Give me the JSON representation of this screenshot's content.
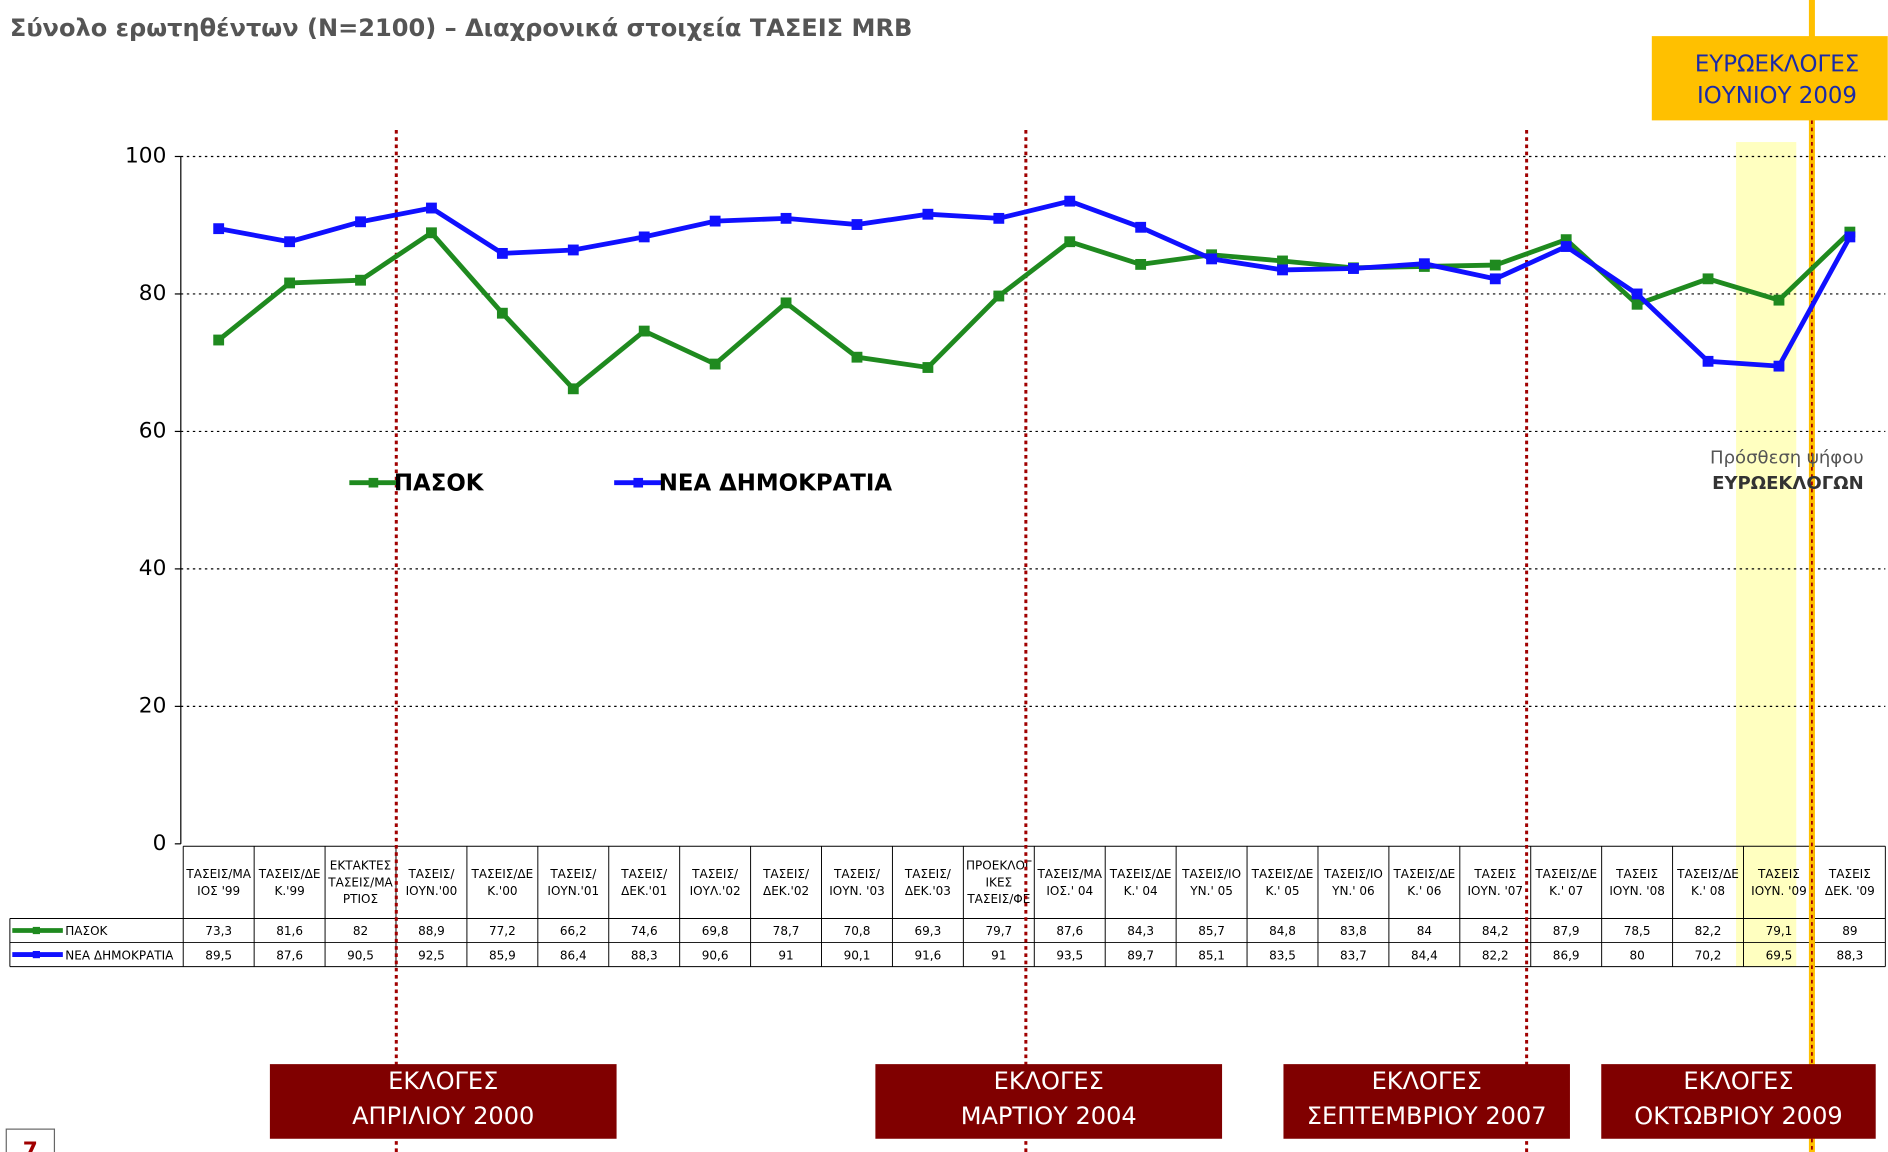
{
  "chart_data": {
    "type": "line",
    "title": "Σύνολο ερωτηθέντων (N=2100) – Διαχρονικά στοιχεία ΤΑΣΕΙΣ MRB",
    "categories": [
      "ΤΑΣΕΙΣ/ΜΑ\nΙΟΣ '99",
      "ΤΑΣΕΙΣ/ΔΕ\nΚ.'99",
      "ΕΚΤΑΚΤΕΣ\nΤΑΣΕΙΣ/ΜΑ\nΡΤΙΟΣ",
      "ΤΑΣΕΙΣ/\nΙΟΥΝ.'00",
      "ΤΑΣΕΙΣ/ΔΕ\nΚ.'00",
      "ΤΑΣΕΙΣ/\nΙΟΥΝ.'01",
      "ΤΑΣΕΙΣ/\nΔΕΚ.'01",
      "ΤΑΣΕΙΣ/\nΙΟΥΛ.'02",
      "ΤΑΣΕΙΣ/\nΔΕΚ.'02",
      "ΤΑΣΕΙΣ/\nΙΟΥΝ. '03",
      "ΤΑΣΕΙΣ/\nΔΕΚ.'03",
      "ΠΡΟΕΚΛΟΓ\nΙΚΕΣ\nΤΑΣΕΙΣ/ΦΕ",
      "ΤΑΣΕΙΣ/ΜΑ\nΙΟΣ.' 04",
      "ΤΑΣΕΙΣ/ΔΕ\nΚ.' 04",
      "ΤΑΣΕΙΣ/ΙΟ\nΥΝ.' 05",
      "ΤΑΣΕΙΣ/ΔΕ\nΚ.' 05",
      "ΤΑΣΕΙΣ/ΙΟ\nΥΝ.' 06",
      "ΤΑΣΕΙΣ/ΔΕ\nΚ.' 06",
      "ΤΑΣΕΙΣ\nΙΟΥΝ. '07",
      "ΤΑΣΕΙΣ/ΔΕ\nΚ.' 07",
      "ΤΑΣΕΙΣ\nΙΟΥΝ. '08",
      "ΤΑΣΕΙΣ/ΔΕ\nΚ.' 08",
      "ΤΑΣΕΙΣ\nΙΟΥΝ. '09",
      "ΤΑΣΕΙΣ\nΔΕΚ. '09"
    ],
    "series": [
      {
        "name": "ΠΑΣΟΚ",
        "color": "#1f8a1f",
        "values": [
          73.3,
          81.6,
          82,
          88.9,
          77.2,
          66.2,
          74.6,
          69.8,
          78.7,
          70.8,
          69.3,
          79.7,
          87.6,
          84.3,
          85.7,
          84.8,
          83.8,
          84,
          84.2,
          87.9,
          78.5,
          82.2,
          79.1,
          89
        ],
        "value_labels": [
          "73,3",
          "81,6",
          "82",
          "88,9",
          "77,2",
          "66,2",
          "74,6",
          "69,8",
          "78,7",
          "70,8",
          "69,3",
          "79,7",
          "87,6",
          "84,3",
          "85,7",
          "84,8",
          "83,8",
          "84",
          "84,2",
          "87,9",
          "78,5",
          "82,2",
          "79,1",
          "89"
        ]
      },
      {
        "name": "ΝΕΑ ΔΗΜΟΚΡΑΤΙΑ",
        "color": "#1010ff",
        "values": [
          89.5,
          87.6,
          90.5,
          92.5,
          85.9,
          86.4,
          88.3,
          90.6,
          91,
          90.1,
          91.6,
          91,
          93.5,
          89.7,
          85.1,
          83.5,
          83.7,
          84.4,
          82.2,
          86.9,
          80,
          70.2,
          69.5,
          88.3
        ],
        "value_labels": [
          "89,5",
          "87,6",
          "90,5",
          "92,5",
          "85,9",
          "86,4",
          "88,3",
          "90,6",
          "91",
          "90,1",
          "91,6",
          "91",
          "93,5",
          "89,7",
          "85,1",
          "83,5",
          "83,7",
          "84,4",
          "82,2",
          "86,9",
          "80",
          "70,2",
          "69,5",
          "88,3"
        ]
      }
    ],
    "ylim": [
      0,
      100
    ],
    "yticks": [
      0,
      20,
      40,
      60,
      80,
      100
    ],
    "grid": true,
    "elections": [
      [
        "ΕΚΛΟΓΕΣ",
        "ΑΠΡΙΛΙΟΥ 2000"
      ],
      [
        "ΕΚΛΟΓΕΣ",
        "ΜΑΡΤΙΟΥ 2004"
      ],
      [
        "ΕΚΛΟΓΕΣ",
        "ΣΕΠΤΕΜΒΡΙΟΥ 2007"
      ],
      [
        "ΕΚΛΟΓΕΣ",
        "ΟΚΤΩΒΡΙΟΥ  2009"
      ]
    ],
    "euro_box": [
      "ΕΥΡΩΕΚΛΟΓΕΣ",
      "ΙΟΥΝΙΟΥ 2009"
    ],
    "euro_note": [
      "Πρόσθεση ψήφου",
      "ΕΥΡΩΕΚΛΟΓΩΝ"
    ],
    "page_number": "7"
  }
}
